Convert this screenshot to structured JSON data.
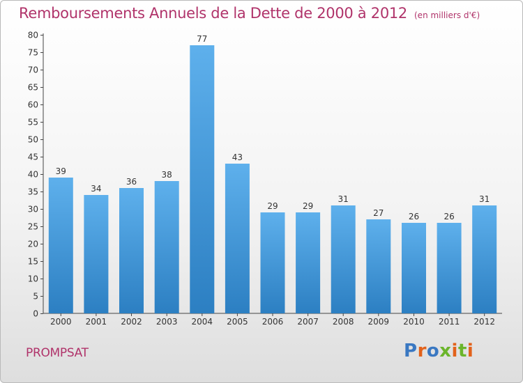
{
  "header": {
    "title": "Remboursements Annuels de la Dette de 2000 à 2012",
    "subtitle": "(en milliers d'€)"
  },
  "footer": {
    "commune": "PROMPSAT",
    "logo_text": "Proxiti",
    "logo_colors": [
      "#3a78c2",
      "#e2621b",
      "#3a78c2",
      "#6bb52b",
      "#e2621b",
      "#6bb52b",
      "#e2621b"
    ]
  },
  "colors": {
    "accent": "#b0336a",
    "bar_top": "#5eb0ec",
    "bar_bottom": "#2c7fc2",
    "axis": "#444444"
  },
  "chart_data": {
    "type": "bar",
    "title": "Remboursements Annuels de la Dette de 2000 à 2012",
    "subtitle": "(en milliers d'€)",
    "categories": [
      "2000",
      "2001",
      "2002",
      "2003",
      "2004",
      "2005",
      "2006",
      "2007",
      "2008",
      "2009",
      "2010",
      "2011",
      "2012"
    ],
    "values": [
      39,
      34,
      36,
      38,
      77,
      43,
      29,
      29,
      31,
      27,
      26,
      26,
      31
    ],
    "ylim": [
      0,
      80
    ],
    "yticks": [
      0,
      5,
      10,
      15,
      20,
      25,
      30,
      35,
      40,
      45,
      50,
      55,
      60,
      65,
      70,
      75,
      80
    ],
    "grid": false,
    "data_labels": true
  }
}
